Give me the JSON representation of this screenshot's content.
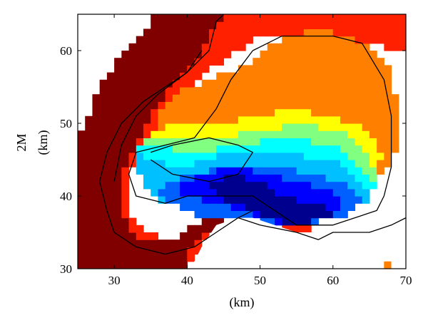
{
  "chart_data": {
    "type": "heatmap",
    "title": "",
    "xlabel": "(km)",
    "ylabel_top": "2M",
    "ylabel_bottom": "(km)",
    "xlim": [
      25,
      70
    ],
    "ylim": [
      30,
      65
    ],
    "xticks": [
      30,
      40,
      50,
      60,
      70
    ],
    "yticks": [
      30,
      40,
      50,
      60
    ],
    "grid": false,
    "legend": "none",
    "cell_size_km": 1,
    "colormap": [
      "#00008f",
      "#0000ff",
      "#0060ff",
      "#00c0ff",
      "#00ffff",
      "#80ff80",
      "#ffff00",
      "#ff8000",
      "#ff2000",
      "#800000"
    ],
    "regions": [
      {
        "level": 9,
        "polygon": [
          [
            25,
            48
          ],
          [
            27,
            52
          ],
          [
            28,
            55
          ],
          [
            30,
            58
          ],
          [
            33,
            61
          ],
          [
            35,
            64
          ],
          [
            36,
            65
          ],
          [
            45,
            65
          ],
          [
            42,
            60
          ],
          [
            40,
            57
          ],
          [
            37,
            54
          ],
          [
            35,
            51
          ],
          [
            33,
            47
          ],
          [
            31,
            43
          ],
          [
            31,
            39
          ],
          [
            32,
            35
          ],
          [
            35,
            34
          ],
          [
            38,
            34
          ],
          [
            41,
            36
          ],
          [
            44,
            37
          ],
          [
            47,
            38
          ],
          [
            49,
            37
          ],
          [
            50,
            36
          ],
          [
            47,
            35
          ],
          [
            43,
            35
          ],
          [
            40,
            33
          ],
          [
            40,
            30
          ],
          [
            25,
            30
          ]
        ]
      },
      {
        "level": 8,
        "polygon": [
          [
            45,
            65
          ],
          [
            70,
            65
          ],
          [
            70,
            30
          ],
          [
            40,
            30
          ],
          [
            40,
            33
          ],
          [
            43,
            35
          ],
          [
            47,
            35
          ],
          [
            50,
            36
          ],
          [
            52,
            37
          ],
          [
            55,
            36
          ],
          [
            60,
            35
          ],
          [
            65,
            36
          ],
          [
            68,
            37
          ],
          [
            70,
            37
          ],
          [
            70,
            60
          ],
          [
            60,
            62
          ],
          [
            50,
            62
          ],
          [
            44,
            58
          ],
          [
            40,
            55
          ],
          [
            37,
            52
          ],
          [
            35,
            48
          ],
          [
            33,
            45
          ],
          [
            32,
            42
          ],
          [
            32,
            38
          ],
          [
            34,
            35
          ],
          [
            38,
            34
          ],
          [
            35,
            34
          ],
          [
            32,
            35
          ],
          [
            31,
            39
          ],
          [
            31,
            43
          ],
          [
            33,
            47
          ],
          [
            35,
            51
          ],
          [
            37,
            54
          ],
          [
            40,
            57
          ],
          [
            42,
            60
          ]
        ]
      },
      {
        "level": 7,
        "polygon": [
          [
            36,
            51
          ],
          [
            38,
            54
          ],
          [
            43,
            56
          ],
          [
            48,
            58
          ],
          [
            52,
            61
          ],
          [
            58,
            63
          ],
          [
            65,
            61
          ],
          [
            68,
            57
          ],
          [
            69,
            52
          ],
          [
            69,
            47
          ],
          [
            67,
            43
          ],
          [
            60,
            40
          ],
          [
            52,
            40
          ],
          [
            45,
            42
          ],
          [
            38,
            44
          ],
          [
            35,
            47
          ]
        ]
      },
      {
        "level": 6,
        "polygon": [
          [
            35,
            49
          ],
          [
            40,
            50
          ],
          [
            45,
            50
          ],
          [
            50,
            51
          ],
          [
            55,
            52
          ],
          [
            60,
            51
          ],
          [
            65,
            49
          ],
          [
            67,
            45
          ],
          [
            64,
            42
          ],
          [
            58,
            40
          ],
          [
            50,
            40
          ],
          [
            43,
            42
          ],
          [
            37,
            44
          ],
          [
            34,
            46
          ]
        ]
      },
      {
        "level": 5,
        "polygon": [
          [
            34,
            48
          ],
          [
            38,
            48
          ],
          [
            44,
            48
          ],
          [
            50,
            49
          ],
          [
            56,
            50
          ],
          [
            61,
            49
          ],
          [
            65,
            46
          ],
          [
            66,
            42
          ],
          [
            62,
            40
          ],
          [
            55,
            39
          ],
          [
            48,
            39
          ],
          [
            42,
            40
          ],
          [
            37,
            42
          ],
          [
            34,
            44
          ]
        ]
      },
      {
        "level": 4,
        "polygon": [
          [
            33,
            47
          ],
          [
            36,
            47
          ],
          [
            41,
            46
          ],
          [
            47,
            47
          ],
          [
            54,
            48
          ],
          [
            60,
            47
          ],
          [
            64,
            44
          ],
          [
            66,
            41
          ],
          [
            62,
            39
          ],
          [
            55,
            38
          ],
          [
            47,
            38
          ],
          [
            41,
            39
          ],
          [
            37,
            41
          ],
          [
            34,
            43
          ]
        ]
      },
      {
        "level": 3,
        "polygon": [
          [
            33,
            46
          ],
          [
            35,
            45
          ],
          [
            40,
            44
          ],
          [
            46,
            46
          ],
          [
            53,
            46
          ],
          [
            60,
            45
          ],
          [
            64,
            42
          ],
          [
            66,
            40
          ],
          [
            62,
            38
          ],
          [
            55,
            37
          ],
          [
            47,
            37
          ],
          [
            41,
            38
          ],
          [
            37,
            39
          ],
          [
            34,
            41
          ]
        ]
      },
      {
        "level": 2,
        "polygon": [
          [
            36,
            41
          ],
          [
            40,
            43
          ],
          [
            46,
            44
          ],
          [
            52,
            44
          ],
          [
            58,
            43
          ],
          [
            63,
            41
          ],
          [
            64,
            39
          ],
          [
            62,
            37
          ],
          [
            55,
            36
          ],
          [
            48,
            36
          ],
          [
            42,
            37
          ],
          [
            38,
            39
          ]
        ]
      },
      {
        "level": 1,
        "polygon": [
          [
            38,
            41
          ],
          [
            42,
            43
          ],
          [
            47,
            44
          ],
          [
            51,
            43
          ],
          [
            55,
            42
          ],
          [
            60,
            41
          ],
          [
            62,
            39
          ],
          [
            60,
            37
          ],
          [
            55,
            36
          ],
          [
            50,
            37
          ],
          [
            45,
            39
          ],
          [
            40,
            40
          ]
        ]
      },
      {
        "level": 0,
        "polygon": [
          [
            43,
            42
          ],
          [
            47,
            43
          ],
          [
            50,
            42
          ],
          [
            53,
            40
          ],
          [
            57,
            39
          ],
          [
            61,
            38
          ],
          [
            60,
            37
          ],
          [
            55,
            36
          ],
          [
            51,
            37
          ],
          [
            47,
            39
          ],
          [
            44,
            40
          ]
        ]
      }
    ],
    "masks": [
      {
        "name": "upper-left-gap",
        "polygon": [
          [
            25,
            65
          ],
          [
            30,
            65
          ],
          [
            30,
            61
          ],
          [
            29,
            61
          ],
          [
            29,
            60
          ],
          [
            27,
            60
          ],
          [
            27,
            57
          ],
          [
            25,
            57
          ]
        ]
      },
      {
        "name": "lower-right-gap",
        "polygon": [
          [
            40,
            30
          ],
          [
            70,
            30
          ],
          [
            70,
            37
          ],
          [
            68,
            37
          ],
          [
            65,
            36
          ],
          [
            60,
            35
          ],
          [
            55,
            35
          ],
          [
            52,
            36
          ],
          [
            49,
            37
          ],
          [
            47,
            37
          ],
          [
            44,
            36
          ],
          [
            42,
            33
          ],
          [
            41,
            31
          ]
        ]
      }
    ],
    "contours": [
      {
        "name": "contour-outer",
        "points": [
          [
            30,
            42
          ],
          [
            31,
            47
          ],
          [
            33,
            51
          ],
          [
            36,
            54
          ],
          [
            40,
            57
          ],
          [
            43,
            60
          ],
          [
            44,
            64
          ],
          [
            45,
            65
          ]
        ]
      },
      {
        "name": "contour-inner-left",
        "points": [
          [
            29,
            38
          ],
          [
            28,
            42
          ],
          [
            29,
            46
          ],
          [
            31,
            50
          ],
          [
            34,
            53
          ],
          [
            37,
            55
          ],
          [
            40,
            57
          ],
          [
            42,
            60
          ]
        ]
      },
      {
        "name": "contour-main",
        "points": [
          [
            49,
            60
          ],
          [
            53,
            62
          ],
          [
            60,
            62
          ],
          [
            64,
            61
          ],
          [
            67,
            56
          ],
          [
            68,
            51
          ],
          [
            68,
            44
          ],
          [
            67,
            40
          ],
          [
            66,
            38
          ],
          [
            63,
            37
          ],
          [
            60,
            36
          ],
          [
            55,
            36
          ],
          [
            52,
            38
          ],
          [
            49,
            40
          ],
          [
            45,
            40
          ],
          [
            40,
            40
          ],
          [
            37,
            39
          ],
          [
            33,
            40
          ],
          [
            32,
            43
          ],
          [
            33,
            46
          ],
          [
            37,
            47
          ],
          [
            41,
            48
          ],
          [
            44,
            52
          ],
          [
            46,
            56
          ],
          [
            49,
            60
          ]
        ]
      },
      {
        "name": "contour-tongue",
        "points": [
          [
            35,
            45
          ],
          [
            38,
            43
          ],
          [
            43,
            42
          ],
          [
            47,
            43
          ],
          [
            49,
            46
          ],
          [
            47,
            47
          ],
          [
            43,
            48
          ],
          [
            38,
            47
          ],
          [
            35,
            46
          ]
        ]
      },
      {
        "name": "contour-lower-left",
        "points": [
          [
            29,
            38
          ],
          [
            30,
            35
          ],
          [
            33,
            33
          ],
          [
            37,
            32
          ],
          [
            41,
            33
          ],
          [
            44,
            35
          ],
          [
            47,
            37
          ],
          [
            49,
            38
          ]
        ]
      },
      {
        "name": "contour-boundary",
        "points": [
          [
            47,
            37
          ],
          [
            50,
            36
          ],
          [
            55,
            35
          ],
          [
            58,
            34
          ],
          [
            60,
            35
          ],
          [
            65,
            35
          ],
          [
            68,
            36
          ],
          [
            70,
            37
          ]
        ]
      }
    ],
    "small_marks": [
      {
        "name": "small-cell",
        "x": 67.5,
        "y": 30.5,
        "level": 7
      }
    ]
  }
}
